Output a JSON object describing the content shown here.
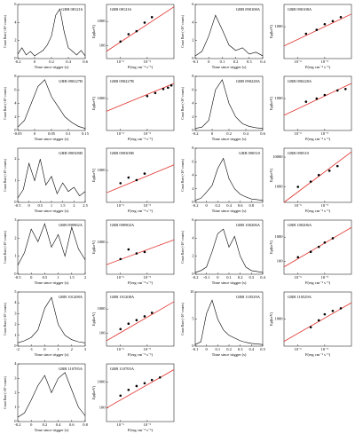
{
  "chart_data": [
    {
      "type": "line",
      "title": "GRB 081216",
      "xlabel": "Time since trigger (s)",
      "ylabel": "Count Rate (×10³ counts)",
      "color": "#000000",
      "xlim": [
        -0.2,
        0.6
      ],
      "xticks": [
        -0.2,
        0,
        0.2,
        0.4,
        0.6
      ],
      "ylim": [
        0,
        6
      ],
      "yticks": [
        0,
        2,
        4,
        6
      ],
      "x": [
        -0.2,
        -0.15,
        -0.1,
        -0.05,
        0,
        0.05,
        0.1,
        0.15,
        0.2,
        0.25,
        0.3,
        0.35,
        0.4,
        0.45,
        0.5,
        0.55,
        0.6
      ],
      "values": [
        0.5,
        1.2,
        0.4,
        0.8,
        0.3,
        0.6,
        0.9,
        1.5,
        2.5,
        4.8,
        5.5,
        3.0,
        1.2,
        0.8,
        0.4,
        0.9,
        0.3
      ]
    },
    {
      "type": "scatter",
      "title": "GRB 081216",
      "xlabel": "F(erg cm⁻² s⁻¹)",
      "ylabel": "Ep(keV)",
      "log": true,
      "color": "#000000",
      "xlim": [
        3e-07,
        0.0001
      ],
      "xticks": [
        {
          "value": 1e-06,
          "label": "10⁻⁶"
        },
        {
          "value": 1e-05,
          "label": "10⁻⁵"
        }
      ],
      "ylim": [
        30,
        5000
      ],
      "yticks": [
        100,
        1000
      ],
      "x": [
        1e-06,
        2e-06,
        4e-06,
        8e-06,
        1.5e-05
      ],
      "values": [
        150,
        300,
        400,
        900,
        1500
      ],
      "fit": {
        "color": "#e0302a",
        "x": [
          3e-07,
          0.0001
        ],
        "values": [
          60,
          4000
        ]
      }
    },
    {
      "type": "line",
      "title": "GRB 090108A",
      "xlabel": "Time since trigger (s)",
      "ylabel": "Count Rate (×10³ counts)",
      "color": "#000000",
      "xlim": [
        -0.1,
        0.4
      ],
      "xticks": [
        -0.1,
        0,
        0.1,
        0.2,
        0.3,
        0.4
      ],
      "ylim": [
        0,
        6
      ],
      "yticks": [
        0,
        2,
        4,
        6
      ],
      "x": [
        -0.1,
        -0.05,
        0,
        0.05,
        0.1,
        0.15,
        0.2,
        0.25,
        0.3,
        0.35,
        0.4
      ],
      "values": [
        0.3,
        0.8,
        2.5,
        4.8,
        3.2,
        1.5,
        0.9,
        1.2,
        0.5,
        0.7,
        0.3
      ]
    },
    {
      "type": "scatter",
      "title": "GRB 090108A",
      "xlabel": "F(erg cm⁻² s⁻¹)",
      "ylabel": "Ep(keV)",
      "log": true,
      "color": "#000000",
      "xlim": [
        3e-07,
        0.0001
      ],
      "xticks": [
        {
          "value": 1e-06,
          "label": "10⁻⁶"
        },
        {
          "value": 1e-05,
          "label": "10⁻⁵"
        }
      ],
      "ylim": [
        100,
        5000
      ],
      "yticks": [
        1000
      ],
      "x": [
        2e-06,
        5e-06,
        1e-05,
        2e-05,
        4e-05
      ],
      "values": [
        600,
        800,
        1200,
        1500,
        2000
      ],
      "fit": {
        "color": "#e0302a",
        "x": [
          3e-07,
          0.0001
        ],
        "values": [
          250,
          2500
        ]
      }
    },
    {
      "type": "line",
      "title": "GRB 090227B",
      "xlabel": "Time since trigger (s)",
      "ylabel": "Count Rate (×10³ counts)",
      "color": "#000000",
      "xlim": [
        -0.05,
        0.15
      ],
      "xticks": [
        -0.05,
        0,
        0.05,
        0.1,
        0.15
      ],
      "ylim": [
        0,
        8
      ],
      "yticks": [
        0,
        2,
        4,
        6,
        8
      ],
      "x": [
        -0.05,
        -0.03,
        -0.01,
        0.01,
        0.03,
        0.05,
        0.07,
        0.09,
        0.11,
        0.13,
        0.15
      ],
      "values": [
        0.5,
        1.5,
        4.0,
        6.5,
        7.5,
        5.0,
        3.5,
        2.0,
        1.2,
        0.6,
        0.3
      ]
    },
    {
      "type": "scatter",
      "title": "GRB 090227B",
      "xlabel": "F(erg cm⁻² s⁻¹)",
      "ylabel": "Ep(keV)",
      "log": true,
      "color": "#000000",
      "xlim": [
        3e-07,
        0.0001
      ],
      "xticks": [
        {
          "value": 1e-06,
          "label": "10⁻⁶"
        },
        {
          "value": 1e-05,
          "label": "10⁻⁵"
        }
      ],
      "ylim": [
        100,
        5000
      ],
      "yticks": [
        1000
      ],
      "x": [
        1e-05,
        2e-05,
        4e-05,
        6e-05,
        8e-05
      ],
      "values": [
        1200,
        1500,
        2000,
        2200,
        2600
      ],
      "fit": {
        "color": "#e0302a",
        "x": [
          3e-07,
          0.0001
        ],
        "values": [
          400,
          3000
        ]
      }
    },
    {
      "type": "line",
      "title": "GRB 090228A",
      "xlabel": "Time since trigger (s)",
      "ylabel": "Count Rate (×10³ counts)",
      "color": "#000000",
      "xlim": [
        -0.2,
        0.6
      ],
      "xticks": [
        -0.2,
        0,
        0.2,
        0.4,
        0.6
      ],
      "ylim": [
        0,
        8
      ],
      "yticks": [
        0,
        2,
        4,
        6,
        8
      ],
      "x": [
        -0.2,
        -0.12,
        -0.04,
        0.04,
        0.12,
        0.2,
        0.28,
        0.36,
        0.44,
        0.52,
        0.6
      ],
      "values": [
        0.3,
        0.5,
        1.5,
        6.0,
        7.5,
        4.0,
        2.0,
        1.0,
        0.6,
        0.4,
        0.3
      ]
    },
    {
      "type": "scatter",
      "title": "GRB 090228A",
      "xlabel": "F(erg cm⁻² s⁻¹)",
      "ylabel": "Ep(keV)",
      "log": true,
      "color": "#000000",
      "xlim": [
        3e-07,
        0.0001
      ],
      "xticks": [
        {
          "value": 1e-06,
          "label": "10⁻⁶"
        },
        {
          "value": 1e-05,
          "label": "10⁻⁵"
        }
      ],
      "ylim": [
        100,
        5000
      ],
      "yticks": [
        1000
      ],
      "x": [
        2e-06,
        5e-06,
        1e-05,
        3e-05,
        6e-05
      ],
      "values": [
        800,
        1000,
        1300,
        1800,
        2000
      ],
      "fit": {
        "color": "#e0302a",
        "x": [
          3e-07,
          0.0001
        ],
        "values": [
          300,
          3000
        ]
      }
    },
    {
      "type": "line",
      "title": "GRB 090305B",
      "xlabel": "Time since trigger (s)",
      "ylabel": "Count Rate (×10³ counts)",
      "color": "#000000",
      "xlim": [
        -0.5,
        2.5
      ],
      "xticks": [
        -0.5,
        0,
        0.5,
        1,
        1.5,
        2,
        2.5
      ],
      "ylim": [
        0,
        2.5
      ],
      "yticks": [
        0,
        1,
        2
      ],
      "x": [
        -0.5,
        -0.25,
        0,
        0.25,
        0.5,
        0.75,
        1,
        1.25,
        1.5,
        1.75,
        2,
        2.25,
        2.5
      ],
      "values": [
        0.2,
        0.6,
        1.8,
        1.0,
        2.0,
        0.8,
        1.2,
        0.4,
        0.9,
        0.5,
        0.7,
        0.3,
        0.5
      ]
    },
    {
      "type": "scatter",
      "title": "GRB 090305B",
      "xlabel": "F(erg cm⁻² s⁻¹)",
      "ylabel": "Ep(keV)",
      "log": true,
      "color": "#000000",
      "xlim": [
        3e-07,
        0.0001
      ],
      "xticks": [
        {
          "value": 1e-06,
          "label": "10⁻⁶"
        },
        {
          "value": 1e-05,
          "label": "10⁻⁵"
        }
      ],
      "ylim": [
        100,
        5000
      ],
      "yticks": [
        1000
      ],
      "x": [
        1e-06,
        2e-06,
        4e-06,
        8e-06
      ],
      "values": [
        400,
        600,
        500,
        800
      ],
      "fit": {
        "color": "#e0302a",
        "x": [
          3e-07,
          0.0001
        ],
        "values": [
          200,
          1500
        ]
      }
    },
    {
      "type": "line",
      "title": "GRB 090510",
      "xlabel": "Time since trigger (s)",
      "ylabel": "Count Rate (×10³ counts)",
      "color": "#000000",
      "xlim": [
        -0.2,
        1
      ],
      "xticks": [
        -0.2,
        0,
        0.2,
        0.4,
        0.6,
        0.8,
        1
      ],
      "ylim": [
        0,
        8
      ],
      "yticks": [
        0,
        2,
        4,
        6,
        8
      ],
      "x": [
        -0.2,
        -0.1,
        0,
        0.1,
        0.2,
        0.3,
        0.4,
        0.5,
        0.6,
        0.7,
        0.8,
        0.9,
        1
      ],
      "values": [
        0.3,
        0.6,
        1.5,
        2.5,
        5.0,
        6.5,
        3.5,
        2.0,
        1.2,
        0.8,
        0.5,
        0.4,
        0.3
      ]
    },
    {
      "type": "scatter",
      "title": "GRB 090510",
      "xlabel": "F(erg cm⁻² s⁻¹)",
      "ylabel": "Ep(keV)",
      "log": true,
      "color": "#000000",
      "xlim": [
        3e-07,
        0.0001
      ],
      "xticks": [
        {
          "value": 1e-06,
          "label": "10⁻⁶"
        },
        {
          "value": 1e-05,
          "label": "10⁻⁵"
        }
      ],
      "ylim": [
        300,
        20000
      ],
      "yticks": [
        1000,
        10000
      ],
      "x": [
        1e-06,
        3e-06,
        6e-06,
        1.5e-05,
        3e-05
      ],
      "values": [
        1000,
        1500,
        2500,
        3500,
        5000
      ],
      "fit": {
        "color": "#e0302a",
        "x": [
          3e-07,
          0.0001
        ],
        "values": [
          300,
          15000
        ]
      }
    },
    {
      "type": "line",
      "title": "GRB 090902A",
      "xlabel": "Time since trigger (s)",
      "ylabel": "Count Rate (×10³ counts)",
      "color": "#000000",
      "xlim": [
        -0.5,
        2
      ],
      "xticks": [
        -0.5,
        0,
        0.5,
        1,
        1.5,
        2
      ],
      "ylim": [
        0,
        3
      ],
      "yticks": [
        0,
        1,
        2,
        3
      ],
      "x": [
        -0.5,
        -0.25,
        0,
        0.25,
        0.5,
        0.75,
        1,
        1.25,
        1.5,
        1.75,
        2
      ],
      "values": [
        0.5,
        1.2,
        2.5,
        1.8,
        2.8,
        1.5,
        2.2,
        1.0,
        2.6,
        1.4,
        0.8
      ]
    },
    {
      "type": "scatter",
      "title": "GRB 090902A",
      "xlabel": "F(erg cm⁻² s⁻¹)",
      "ylabel": "Ep(keV)",
      "log": true,
      "color": "#000000",
      "xlim": [
        3e-07,
        0.0001
      ],
      "xticks": [
        {
          "value": 1e-06,
          "label": "10⁻⁶"
        },
        {
          "value": 1e-05,
          "label": "10⁻⁵"
        }
      ],
      "ylim": [
        100,
        5000
      ],
      "yticks": [
        1000
      ],
      "x": [
        1e-06,
        2e-06,
        4e-06,
        8e-06
      ],
      "values": [
        300,
        600,
        450,
        500
      ],
      "fit": {
        "color": "#e0302a",
        "x": [
          3e-07,
          0.0001
        ],
        "values": [
          200,
          1200
        ]
      }
    },
    {
      "type": "line",
      "title": "GRB 100206A",
      "xlabel": "Time since trigger (s)",
      "ylabel": "Count Rate (×10³ counts)",
      "color": "#000000",
      "xlim": [
        -0.2,
        0.4
      ],
      "xticks": [
        -0.2,
        -0.1,
        0,
        0.1,
        0.2,
        0.3,
        0.4
      ],
      "ylim": [
        0,
        6
      ],
      "yticks": [
        0,
        2,
        4,
        6
      ],
      "x": [
        -0.2,
        -0.15,
        -0.1,
        -0.05,
        0,
        0.05,
        0.1,
        0.15,
        0.2,
        0.25,
        0.3,
        0.35,
        0.4
      ],
      "values": [
        0.2,
        0.4,
        0.8,
        2.5,
        4.5,
        5.0,
        3.0,
        4.2,
        2.0,
        0.8,
        0.4,
        0.3,
        0.2
      ]
    },
    {
      "type": "scatter",
      "title": "GRB 100206A",
      "xlabel": "F(erg cm⁻² s⁻¹)",
      "ylabel": "Ep(keV)",
      "log": true,
      "color": "#000000",
      "xlim": [
        3e-07,
        0.0001
      ],
      "xticks": [
        {
          "value": 1e-06,
          "label": "10⁻⁶"
        },
        {
          "value": 1e-05,
          "label": "10⁻⁵"
        }
      ],
      "ylim": [
        30,
        5000
      ],
      "yticks": [
        100,
        1000
      ],
      "x": [
        1e-06,
        3e-06,
        6e-06,
        1e-05,
        2e-05
      ],
      "values": [
        150,
        250,
        400,
        600,
        900
      ],
      "fit": {
        "color": "#e0302a",
        "x": [
          3e-07,
          0.0001
        ],
        "values": [
          60,
          2500
        ]
      }
    },
    {
      "type": "line",
      "title": "GRB 101208A",
      "xlabel": "Time since trigger (s)",
      "ylabel": "Count Rate (×10³ counts)",
      "color": "#000000",
      "xlim": [
        -2,
        3
      ],
      "xticks": [
        -2,
        -1,
        0,
        1,
        2,
        3
      ],
      "ylim": [
        0,
        5
      ],
      "yticks": [
        0,
        1,
        2,
        3,
        4,
        5
      ],
      "x": [
        -2,
        -1.5,
        -1,
        -0.5,
        0,
        0.5,
        1,
        1.5,
        2,
        2.5,
        3
      ],
      "values": [
        0.3,
        0.5,
        0.8,
        1.5,
        3.5,
        4.5,
        2.0,
        1.0,
        0.6,
        0.4,
        0.3
      ]
    },
    {
      "type": "scatter",
      "title": "GRB 101208A",
      "xlabel": "F(erg cm⁻² s⁻¹)",
      "ylabel": "Ep(keV)",
      "log": true,
      "color": "#000000",
      "xlim": [
        3e-07,
        0.0001
      ],
      "xticks": [
        {
          "value": 1e-06,
          "label": "10⁻⁶"
        },
        {
          "value": 1e-05,
          "label": "10⁻⁵"
        }
      ],
      "ylim": [
        30,
        5000
      ],
      "yticks": [
        100,
        1000
      ],
      "x": [
        1e-06,
        2e-06,
        4e-06,
        8e-06,
        1.5e-05
      ],
      "values": [
        150,
        250,
        350,
        500,
        700
      ],
      "fit": {
        "color": "#e0302a",
        "x": [
          3e-07,
          0.0001
        ],
        "values": [
          50,
          2000
        ]
      }
    },
    {
      "type": "line",
      "title": "GRB 110529A",
      "xlabel": "Time since trigger (s)",
      "ylabel": "Count Rate (×10³ counts)",
      "color": "#000000",
      "xlim": [
        -0.1,
        0.5
      ],
      "xticks": [
        -0.1,
        0,
        0.1,
        0.2,
        0.3,
        0.4,
        0.5
      ],
      "ylim": [
        0,
        10
      ],
      "yticks": [
        0,
        5,
        10
      ],
      "x": [
        -0.1,
        -0.05,
        0,
        0.05,
        0.1,
        0.15,
        0.2,
        0.25,
        0.3,
        0.35,
        0.4,
        0.45,
        0.5
      ],
      "values": [
        0.3,
        0.8,
        6.0,
        8.5,
        5.0,
        3.0,
        2.0,
        1.5,
        1.0,
        0.7,
        0.5,
        0.4,
        0.3
      ]
    },
    {
      "type": "scatter",
      "title": "GRB 110529A",
      "xlabel": "F(erg cm⁻² s⁻¹)",
      "ylabel": "Ep(keV)",
      "log": true,
      "color": "#000000",
      "xlim": [
        3e-07,
        0.0001
      ],
      "xticks": [
        {
          "value": 1e-06,
          "label": "10⁻⁶"
        },
        {
          "value": 1e-05,
          "label": "10⁻⁵"
        }
      ],
      "ylim": [
        100,
        10000
      ],
      "yticks": [
        1000
      ],
      "x": [
        3e-06,
        6e-06,
        1e-05,
        2e-05,
        4e-05
      ],
      "values": [
        500,
        900,
        1500,
        2000,
        2500
      ],
      "fit": {
        "color": "#e0302a",
        "x": [
          3e-07,
          0.0001
        ],
        "values": [
          150,
          4000
        ]
      }
    },
    {
      "type": "line",
      "title": "GRB 110705A",
      "xlabel": "Time since trigger (s)",
      "ylabel": "Count Rate (×10³ counts)",
      "color": "#000000",
      "xlim": [
        -0.2,
        0.8
      ],
      "xticks": [
        -0.2,
        0,
        0.2,
        0.4,
        0.6,
        0.8
      ],
      "ylim": [
        0,
        4
      ],
      "yticks": [
        0,
        1,
        2,
        3,
        4
      ],
      "x": [
        -0.2,
        -0.1,
        0,
        0.1,
        0.2,
        0.3,
        0.4,
        0.5,
        0.6,
        0.7,
        0.8
      ],
      "values": [
        0.3,
        0.6,
        1.5,
        2.5,
        3.2,
        2.0,
        3.0,
        3.4,
        2.2,
        1.0,
        0.4
      ]
    },
    {
      "type": "scatter",
      "title": "GRB 110705A",
      "xlabel": "F(erg cm⁻² s⁻¹)",
      "ylabel": "Ep(keV)",
      "log": true,
      "color": "#000000",
      "xlim": [
        3e-07,
        0.0001
      ],
      "xticks": [
        {
          "value": 1e-06,
          "label": "10⁻⁶"
        },
        {
          "value": 1e-05,
          "label": "10⁻⁵"
        }
      ],
      "ylim": [
        30,
        5000
      ],
      "yticks": [
        100,
        1000
      ],
      "x": [
        1e-06,
        2e-06,
        4e-06,
        8e-06,
        1.5e-05,
        3e-05
      ],
      "values": [
        300,
        500,
        700,
        900,
        1200,
        1500
      ],
      "fit": {
        "color": "#e0302a",
        "x": [
          3e-07,
          0.0001
        ],
        "values": [
          100,
          3000
        ]
      }
    }
  ]
}
